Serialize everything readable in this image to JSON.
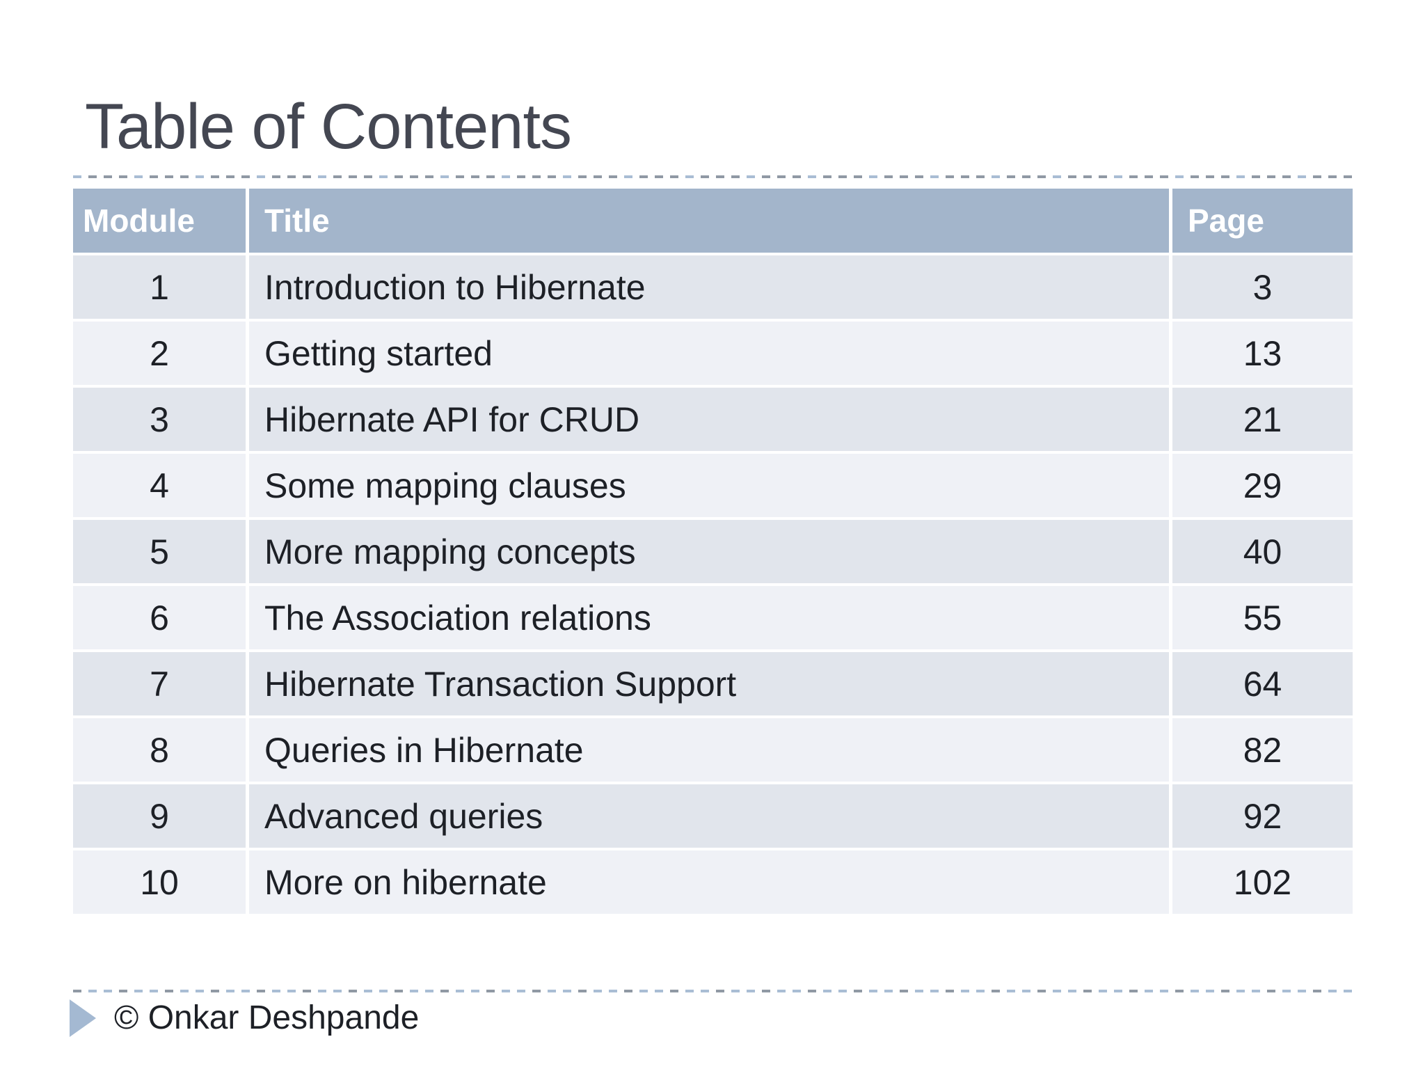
{
  "title": "Table of Contents",
  "table": {
    "columns": [
      "Module",
      "Title",
      "Page"
    ],
    "rows": [
      {
        "module": "1",
        "title": "Introduction to Hibernate",
        "page": "3"
      },
      {
        "module": "2",
        "title": "Getting started",
        "page": "13"
      },
      {
        "module": "3",
        "title": "Hibernate API for CRUD",
        "page": "21"
      },
      {
        "module": "4",
        "title": "Some mapping clauses",
        "page": "29"
      },
      {
        "module": "5",
        "title": "More mapping concepts",
        "page": "40"
      },
      {
        "module": "6",
        "title": "The Association relations",
        "page": "55"
      },
      {
        "module": "7",
        "title": "Hibernate Transaction Support",
        "page": "64"
      },
      {
        "module": "8",
        "title": "Queries in Hibernate",
        "page": "82"
      },
      {
        "module": "9",
        "title": "Advanced queries",
        "page": "92"
      },
      {
        "module": "10",
        "title": "More on hibernate",
        "page": "102"
      }
    ]
  },
  "footer": {
    "copyright": "© Onkar Deshpande",
    "bullet_icon": "right-triangle"
  },
  "colors": {
    "header_bg": "#A3B5CB",
    "row_odd_bg": "#E1E5EC",
    "row_even_bg": "#EFF1F6",
    "header_text": "#FFFFFF",
    "body_text": "#1D2026",
    "title_text": "#444752",
    "arrow": "#A4B9D2",
    "dash_gray": "#9099A4",
    "dash_blue": "#A9BDD4"
  }
}
